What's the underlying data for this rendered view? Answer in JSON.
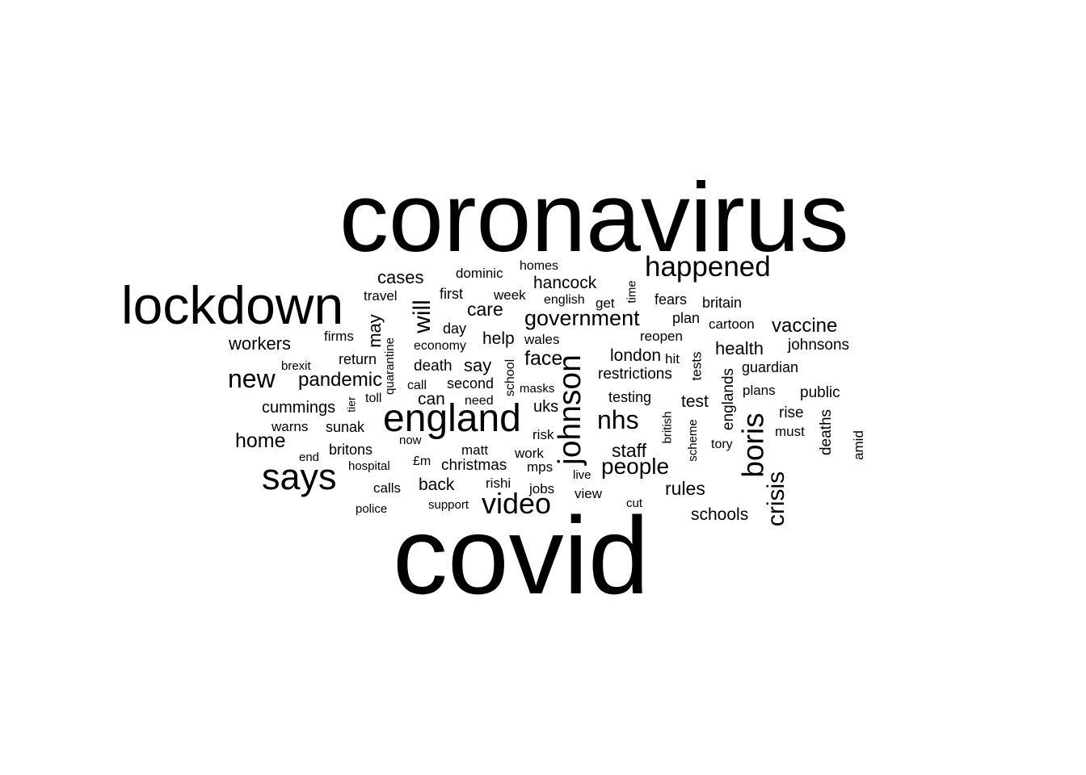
{
  "text_color": "#000000",
  "background_color": "#ffffff",
  "words": [
    {
      "text": "coronavirus",
      "rotated": false
    },
    {
      "text": "covid",
      "rotated": false
    },
    {
      "text": "lockdown",
      "rotated": false
    },
    {
      "text": "england",
      "rotated": false
    },
    {
      "text": "says",
      "rotated": false
    },
    {
      "text": "johnson",
      "rotated": true
    },
    {
      "text": "happened",
      "rotated": false
    },
    {
      "text": "boris",
      "rotated": true
    },
    {
      "text": "video",
      "rotated": false
    },
    {
      "text": "nhs",
      "rotated": false
    },
    {
      "text": "new",
      "rotated": false
    },
    {
      "text": "crisis",
      "rotated": true
    },
    {
      "text": "will",
      "rotated": true
    },
    {
      "text": "government",
      "rotated": false
    },
    {
      "text": "people",
      "rotated": false
    },
    {
      "text": "face",
      "rotated": false
    },
    {
      "text": "vaccine",
      "rotated": false
    },
    {
      "text": "home",
      "rotated": false
    },
    {
      "text": "pandemic",
      "rotated": false
    },
    {
      "text": "cases",
      "rotated": false
    },
    {
      "text": "care",
      "rotated": false
    },
    {
      "text": "hancock",
      "rotated": false
    },
    {
      "text": "health",
      "rotated": false
    },
    {
      "text": "staff",
      "rotated": false
    },
    {
      "text": "rules",
      "rotated": false
    },
    {
      "text": "workers",
      "rotated": false
    },
    {
      "text": "say",
      "rotated": false
    },
    {
      "text": "test",
      "rotated": false
    },
    {
      "text": "london",
      "rotated": false
    },
    {
      "text": "schools",
      "rotated": false
    },
    {
      "text": "cummings",
      "rotated": false
    },
    {
      "text": "can",
      "rotated": false
    },
    {
      "text": "back",
      "rotated": false
    },
    {
      "text": "may",
      "rotated": true
    },
    {
      "text": "help",
      "rotated": false
    },
    {
      "text": "uks",
      "rotated": false
    },
    {
      "text": "restrictions",
      "rotated": false
    },
    {
      "text": "johnsons",
      "rotated": false
    },
    {
      "text": "public",
      "rotated": false
    },
    {
      "text": "christmas",
      "rotated": false
    },
    {
      "text": "death",
      "rotated": false
    },
    {
      "text": "second",
      "rotated": false
    },
    {
      "text": "testing",
      "rotated": false
    },
    {
      "text": "guardian",
      "rotated": false
    },
    {
      "text": "rise",
      "rotated": false
    },
    {
      "text": "englands",
      "rotated": true
    },
    {
      "text": "deaths",
      "rotated": true
    },
    {
      "text": "dominic",
      "rotated": false
    },
    {
      "text": "first",
      "rotated": false
    },
    {
      "text": "week",
      "rotated": false
    },
    {
      "text": "fears",
      "rotated": false
    },
    {
      "text": "britain",
      "rotated": false
    },
    {
      "text": "plan",
      "rotated": false
    },
    {
      "text": "cartoon",
      "rotated": false
    },
    {
      "text": "reopen",
      "rotated": false
    },
    {
      "text": "day",
      "rotated": false
    },
    {
      "text": "firms",
      "rotated": false
    },
    {
      "text": "return",
      "rotated": false
    },
    {
      "text": "economy",
      "rotated": false
    },
    {
      "text": "wales",
      "rotated": false
    },
    {
      "text": "sunak",
      "rotated": false
    },
    {
      "text": "warns",
      "rotated": false
    },
    {
      "text": "britons",
      "rotated": false
    },
    {
      "text": "need",
      "rotated": false
    },
    {
      "text": "risk",
      "rotated": false
    },
    {
      "text": "work",
      "rotated": false
    },
    {
      "text": "mps",
      "rotated": false
    },
    {
      "text": "matt",
      "rotated": false
    },
    {
      "text": "jobs",
      "rotated": false
    },
    {
      "text": "view",
      "rotated": false
    },
    {
      "text": "rishi",
      "rotated": false
    },
    {
      "text": "calls",
      "rotated": false
    },
    {
      "text": "must",
      "rotated": false
    },
    {
      "text": "plans",
      "rotated": false
    },
    {
      "text": "homes",
      "rotated": false
    },
    {
      "text": "travel",
      "rotated": false
    },
    {
      "text": "english",
      "rotated": false
    },
    {
      "text": "get",
      "rotated": false
    },
    {
      "text": "hit",
      "rotated": false
    },
    {
      "text": "tests",
      "rotated": true
    },
    {
      "text": "quarantine",
      "rotated": true
    },
    {
      "text": "school",
      "rotated": true
    },
    {
      "text": "time",
      "rotated": true
    },
    {
      "text": "brexit",
      "rotated": false
    },
    {
      "text": "call",
      "rotated": false
    },
    {
      "text": "toll",
      "rotated": false
    },
    {
      "text": "masks",
      "rotated": false
    },
    {
      "text": "tier",
      "rotated": true
    },
    {
      "text": "british",
      "rotated": true
    },
    {
      "text": "scheme",
      "rotated": true
    },
    {
      "text": "tory",
      "rotated": false
    },
    {
      "text": "amid",
      "rotated": true
    },
    {
      "text": "end",
      "rotated": false
    },
    {
      "text": "now",
      "rotated": false
    },
    {
      "text": "£m",
      "rotated": false
    },
    {
      "text": "hospital",
      "rotated": false
    },
    {
      "text": "live",
      "rotated": false
    },
    {
      "text": "police",
      "rotated": false
    },
    {
      "text": "support",
      "rotated": false
    },
    {
      "text": "cut",
      "rotated": false
    }
  ]
}
